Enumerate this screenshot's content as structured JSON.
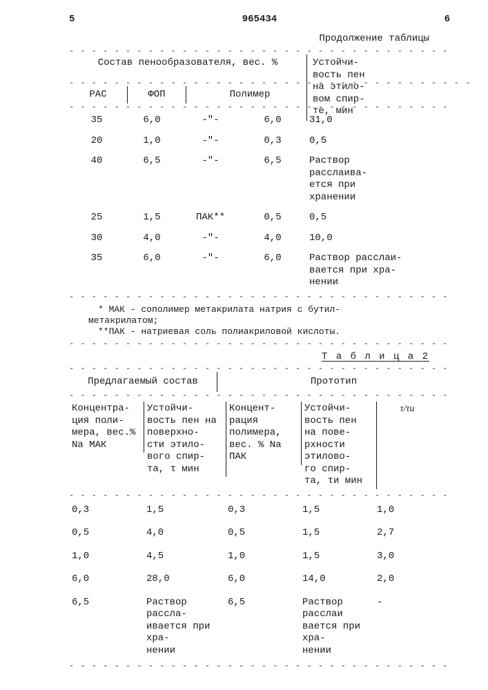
{
  "page": {
    "left_num": "5",
    "doc_num": "965434",
    "right_num": "6",
    "continuation": "Продолжение таблицы"
  },
  "table1": {
    "header_main_left": "Состав пенообразователя, вес. %",
    "header_main_right": "Устойчи-\nвость пен\nна этило-\nвом спир-\nте, мин",
    "sub_c1": "РАС",
    "sub_c2": "ФОП",
    "sub_c3": "Полимер",
    "rows": [
      {
        "c1": "35",
        "c2": "6,0",
        "c3a": "-\"-",
        "c3b": "6,0",
        "c4": "31,0"
      },
      {
        "c1": "20",
        "c2": "1,0",
        "c3a": "-\"-",
        "c3b": "0,3",
        "c4": "0,5"
      },
      {
        "c1": "40",
        "c2": "6,5",
        "c3a": "-\"-",
        "c3b": "6,5",
        "c4": "Раствор расслаива-\nется при хранении"
      },
      {
        "c1": "25",
        "c2": "1,5",
        "c3a": "ПАК**",
        "c3b": "0,5",
        "c4": "0,5"
      },
      {
        "c1": "30",
        "c2": "4,0",
        "c3a": "-\"-",
        "c3b": "4,0",
        "c4": "10,0"
      },
      {
        "c1": "35",
        "c2": "6,0",
        "c3a": "-\"-",
        "c3b": "6,0",
        "c4": "Раствор расслаи-\nвается при хра-\nнении"
      }
    ],
    "footnote1": "* МАК - сополимер метакрилата натрия с бутил-\nметакрилатом;",
    "footnote2": "**ПАК - натриевая соль полиакриловой кислоты."
  },
  "table2": {
    "title": "Т а б л и ц а  2",
    "head_left": "Предлагаемый состав",
    "head_right": "Прототип",
    "cols": {
      "c1": "Концентра-\nция поли-\nмера, вес.%\nNa МАК",
      "c2": "Устойчи-\nвость пен на поверхно-\nсти этило-\nвого спир-\nта, τ мин",
      "c3": "Концент-\nрация полимера, вес. % Na ПАК",
      "c4": "Устойчи-\nвость пен на пове-\nрхности этилово-\nго спир-\nта, τи мин",
      "c5": "τ/τи"
    },
    "rows": [
      {
        "c1": "0,3",
        "c2": "1,5",
        "c3": "0,3",
        "c4": "1,5",
        "c5": "1,0"
      },
      {
        "c1": "0,5",
        "c2": "4,0",
        "c3": "0,5",
        "c4": "1,5",
        "c5": "2,7"
      },
      {
        "c1": "1,0",
        "c2": "4,5",
        "c3": "1,0",
        "c4": "1,5",
        "c5": "3,0"
      },
      {
        "c1": "6,0",
        "c2": "28,0",
        "c3": "6,0",
        "c4": "14,0",
        "c5": "2,0"
      },
      {
        "c1": "6,5",
        "c2": "Раствор рассла-\nивается при хра-\nнении",
        "c3": "6,5",
        "c4": "Раствор расслаи\nвается при хра-\nнении",
        "c5": "-"
      }
    ]
  }
}
